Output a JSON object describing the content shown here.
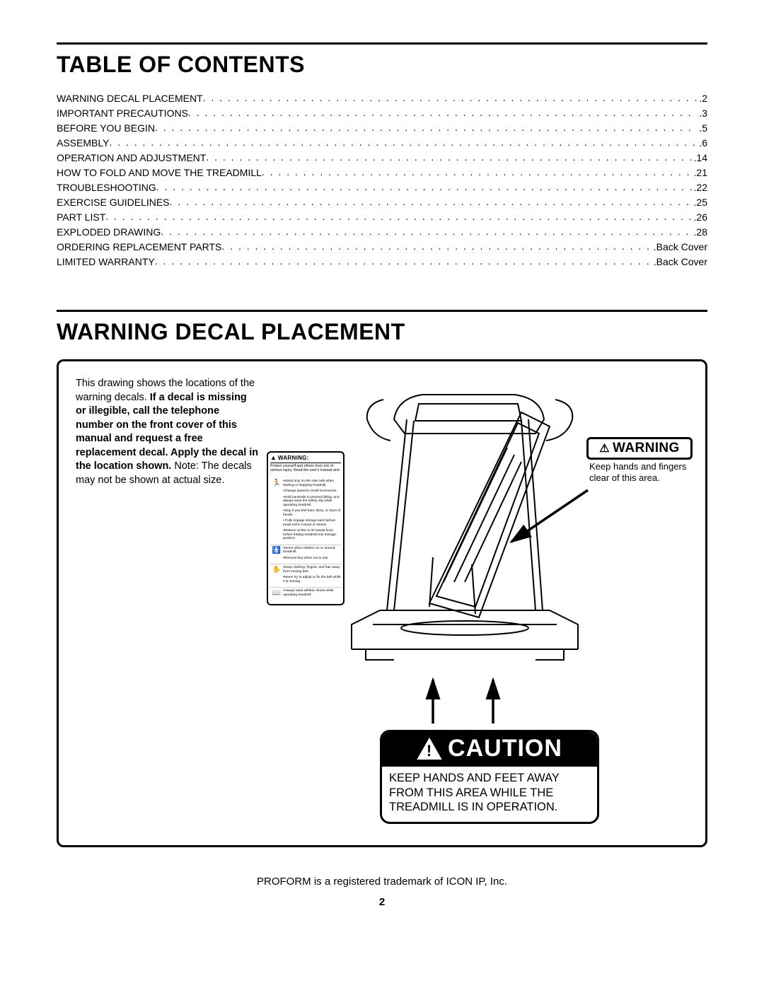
{
  "headings": {
    "toc": "TABLE OF CONTENTS",
    "decal": "WARNING DECAL PLACEMENT"
  },
  "toc": [
    {
      "label": "WARNING DECAL PLACEMENT",
      "page": "2"
    },
    {
      "label": "IMPORTANT PRECAUTIONS",
      "page": "3"
    },
    {
      "label": "BEFORE YOU BEGIN",
      "page": "5"
    },
    {
      "label": "ASSEMBLY",
      "page": "6"
    },
    {
      "label": "OPERATION AND ADJUSTMENT",
      "page": "14"
    },
    {
      "label": "HOW TO FOLD AND MOVE THE TREADMILL",
      "page": "21"
    },
    {
      "label": "TROUBLESHOOTING",
      "page": "22"
    },
    {
      "label": "EXERCISE GUIDELINES",
      "page": "25"
    },
    {
      "label": "PART LIST",
      "page": "26"
    },
    {
      "label": "EXPLODED DRAWING",
      "page": "28"
    },
    {
      "label": "ORDERING REPLACEMENT PARTS",
      "page": "Back Cover"
    },
    {
      "label": "LIMITED WARRANTY",
      "page": "Back Cover"
    }
  ],
  "decal": {
    "intro_plain1": "This drawing shows the locations of the warning decals. ",
    "intro_bold": "If a decal is missing or illegible, call the telephone number on the front cover of this manual and request a free replacement decal. Apply the decal in the location shown.",
    "intro_plain2": " Note: The decals may not be shown at actual size."
  },
  "small_warning": {
    "header": "WARNING:",
    "intro": "Protect yourself and others from risk of serious injury. Read the user's manual and :",
    "groups": [
      {
        "icon": "run",
        "items": [
          "•Stand only on the side rails when starting or stopping treadmill.",
          "•Change speed in small increments.",
          "•Hold handrails to prevent falling, and always wear the safety clip while operating treadmill.",
          "•Stop if you feel faint, dizzy, or short of breath.",
          "• Fully engage storage latch before tread-mill is moved or stored.",
          "•Reduce incline to its lowest level before folding treadmill into storage position."
        ]
      },
      {
        "icon": "child",
        "items": [
          "•Never allow children on or around treadmill.",
          "•Remove key when not in use."
        ]
      },
      {
        "icon": "hand",
        "items": [
          "•Keep clothing, fingers, and hair away from moving belt.",
          "•Never try to adjust or fix the belt while it is moving."
        ]
      },
      {
        "icon": "book",
        "items": [
          "•Always wear athletic shoes while operating treadmill."
        ]
      }
    ]
  },
  "warning_callout": {
    "header": "WARNING",
    "body": "Keep hands and fingers clear of this area."
  },
  "caution": {
    "header": "CAUTION",
    "body": "KEEP HANDS AND FEET AWAY FROM THIS AREA WHILE THE TREADMILL IS IN OPERATION."
  },
  "footer": "PROFORM is a registered trademark of ICON IP, Inc.",
  "page_number": "2",
  "colors": {
    "text": "#000000",
    "bg": "#ffffff",
    "caution_header_bg": "#000000",
    "caution_header_fg": "#ffffff"
  }
}
